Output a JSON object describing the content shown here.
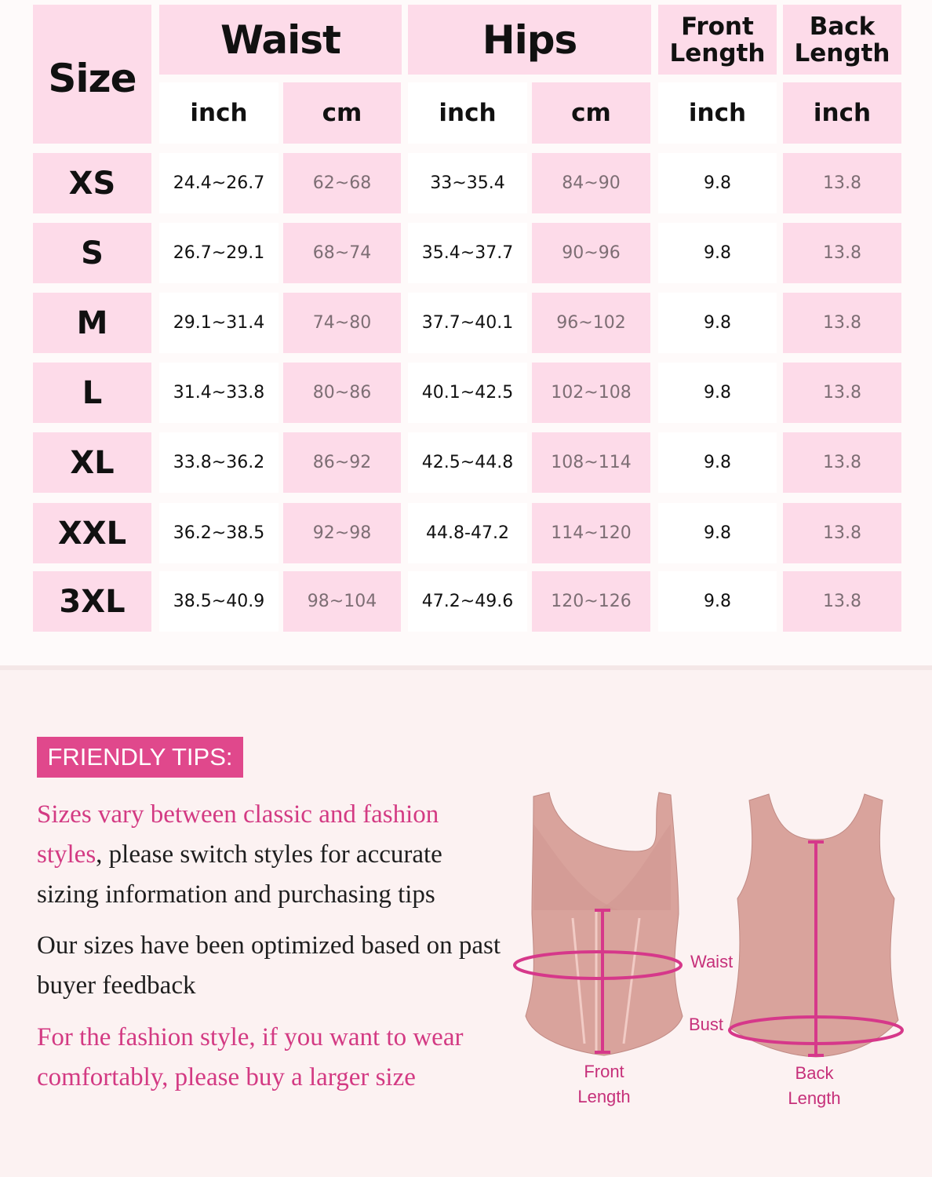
{
  "table": {
    "headers": {
      "size": "Size",
      "waist": "Waist",
      "hips": "Hips",
      "front_length": "Front Length",
      "back_length": "Back Length"
    },
    "units": [
      "inch",
      "cm",
      "inch",
      "cm",
      "inch",
      "inch"
    ],
    "rows": [
      {
        "size": "XS",
        "values": [
          "24.4~26.7",
          "62~68",
          "33~35.4",
          "84~90",
          "9.8",
          "13.8"
        ]
      },
      {
        "size": "S",
        "values": [
          "26.7~29.1",
          "68~74",
          "35.4~37.7",
          "90~96",
          "9.8",
          "13.8"
        ]
      },
      {
        "size": "M",
        "values": [
          "29.1~31.4",
          "74~80",
          "37.7~40.1",
          "96~102",
          "9.8",
          "13.8"
        ]
      },
      {
        "size": "L",
        "values": [
          "31.4~33.8",
          "80~86",
          "40.1~42.5",
          "102~108",
          "9.8",
          "13.8"
        ]
      },
      {
        "size": "XL",
        "values": [
          "33.8~36.2",
          "86~92",
          "42.5~44.8",
          "108~114",
          "9.8",
          "13.8"
        ]
      },
      {
        "size": "XXL",
        "values": [
          "36.2~38.5",
          "92~98",
          "44.8-47.2",
          "114~120",
          "9.8",
          "13.8"
        ]
      },
      {
        "size": "3XL",
        "values": [
          "38.5~40.9",
          "98~104",
          "47.2~49.6",
          "120~126",
          "9.8",
          "13.8"
        ]
      }
    ]
  },
  "tips": {
    "badge": "FRIENDLY TIPS:",
    "p1_pink": "Sizes vary between classic and fashion styles",
    "p1_rest": ", please switch styles for accurate sizing information and purchasing tips",
    "p2": "Our sizes have been optimized based on past buyer feedback",
    "p3": "For the fashion style, if you want to wear comfortably, please buy a larger size"
  },
  "diagram": {
    "waist": "Waist",
    "bust": "Bust",
    "front_length": "Front\nLength",
    "back_length": "Back\nLength"
  },
  "colors": {
    "cell_pink": "#fddbe9",
    "accent": "#e0488c",
    "garment": "#d9a39c"
  }
}
